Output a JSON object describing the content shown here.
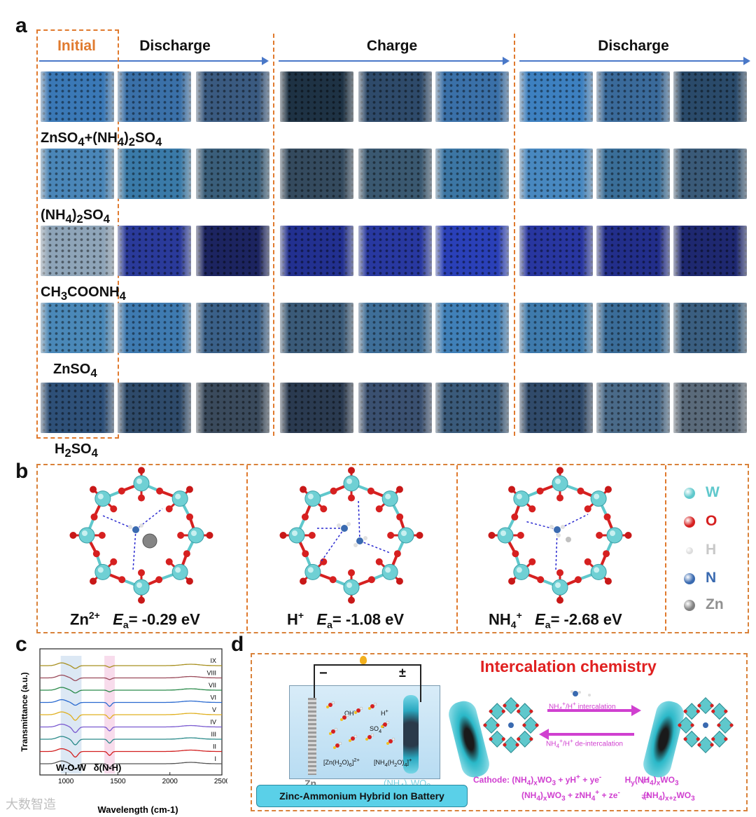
{
  "panels": {
    "a": "a",
    "b": "b",
    "c": "c",
    "d": "d"
  },
  "panel_a": {
    "stages": {
      "initial": "Initial",
      "discharge1": "Discharge",
      "charge": "Charge",
      "discharge2": "Discharge"
    },
    "rows": [
      {
        "label": "ZnSO4+(NH4)2SO4",
        "base": "#2f5f8e",
        "colors": [
          "#3a78b6",
          "#3a70a8",
          "#3a5a80",
          "#1e3244",
          "#2e4a6a",
          "#3a70a8",
          "#3d80c0",
          "#3a6a9a",
          "#2a4a6a",
          "#2a2e32"
        ]
      },
      {
        "label": "(NH4)2SO4",
        "base": "#3a6a8e",
        "colors": [
          "#4a86b8",
          "#3a7aa8",
          "#3a5e7a",
          "#344a5e",
          "#3a5870",
          "#3c76a4",
          "#4888c0",
          "#3a6e98",
          "#3a5a78",
          "#3a4a58"
        ]
      },
      {
        "label": "CH3COONH4",
        "base": "#505a70",
        "colors": [
          "#8ea4b8",
          "#2a3a9a",
          "#1c2460",
          "#223090",
          "#2838a0",
          "#2a40b8",
          "#2836a0",
          "#222e8a",
          "#1e2870",
          "#181e4a"
        ]
      },
      {
        "label": "ZnSO4",
        "base": "#3a6688",
        "colors": [
          "#4a88b8",
          "#3e7ab0",
          "#3a6088",
          "#3a5a78",
          "#3e6e98",
          "#4080b8",
          "#3e7aac",
          "#3a6c98",
          "#3a5e80",
          "#3a4e64"
        ]
      },
      {
        "label": "H2SO4",
        "base": "#2e4a68",
        "colors": [
          "#2e5078",
          "#2e4a6a",
          "#3a4a5c",
          "#2a3a50",
          "#3a5070",
          "#3a5a7a",
          "#304a6a",
          "#4a6a88",
          "#5a6a7a",
          "#4a5460"
        ]
      }
    ]
  },
  "panel_b": {
    "structures": [
      {
        "ion": "Zn2+",
        "ion_main": "Zn",
        "ion_sup": "2+",
        "ea_symbol": "E",
        "ea_sub": "a",
        "ea_value": "= -0.29 eV"
      },
      {
        "ion": "H+",
        "ion_main": "H",
        "ion_sup": "+",
        "ea_symbol": "E",
        "ea_sub": "a",
        "ea_value": "= -1.08 eV"
      },
      {
        "ion": "NH4+",
        "ion_main": "NH",
        "ion_sub": "4",
        "ion_sup": "+",
        "ea_symbol": "E",
        "ea_sub": "a",
        "ea_value": "= -2.68 eV"
      }
    ],
    "legend": [
      {
        "label": "W",
        "color": "#5fc8cc",
        "text_color": "#5fc8cc"
      },
      {
        "label": "O",
        "color": "#d62020",
        "text_color": "#d62020"
      },
      {
        "label": "H",
        "color": "#dcdcdc",
        "text_color": "#c8c8c8"
      },
      {
        "label": "N",
        "color": "#3a6ab0",
        "text_color": "#3a6ab0"
      },
      {
        "label": "Zn",
        "color": "#808080",
        "text_color": "#909090"
      }
    ]
  },
  "chart_data": {
    "type": "line",
    "xlabel": "Wavelength (cm-1)",
    "ylabel": "Transmittance (a.u.)",
    "xlim": [
      750,
      2500
    ],
    "xticks": [
      "1000",
      "1500",
      "2000",
      "2500"
    ],
    "annotations": [
      "W-O-W",
      "δ(N-H)"
    ],
    "series": [
      {
        "name": "I",
        "color": "#555555"
      },
      {
        "name": "II",
        "color": "#d22020"
      },
      {
        "name": "III",
        "color": "#2a8a8a"
      },
      {
        "name": "IV",
        "color": "#7a5ad0"
      },
      {
        "name": "V",
        "color": "#e0b020"
      },
      {
        "name": "VI",
        "color": "#2a6ad0"
      },
      {
        "name": "VII",
        "color": "#2a8a4a"
      },
      {
        "name": "VIII",
        "color": "#9a4a5a"
      },
      {
        "name": "IX",
        "color": "#a89020"
      }
    ]
  },
  "panel_d": {
    "title": "Intercalation chemistry",
    "minus": "−",
    "plus": "±",
    "anode_label": "Zn",
    "cathode_label": "(NH4)xWO3",
    "species": {
      "oh": "OH-",
      "h": "H+",
      "so4": "SO42-",
      "zn_complex": "[Zn(H2O)6]2+",
      "nh4_complex": "[NH4(H2O)4]+"
    },
    "arrow_top": "NH4+/H+ intercalation",
    "arrow_bottom": "NH4+/H+ de-intercalation",
    "battery_label": "Zinc-Ammonium Hybrid Ion Battery",
    "eq1_left": "Cathode: (NH4)xWO3 + yH+ + ye-",
    "eq1_right": "Hy(NH4)xWO3",
    "eq2_left": "(NH4)xWO3 + zNH4+ + ze-",
    "eq2_right": "(NH4)x+zWO3"
  },
  "watermark": "大数智造"
}
